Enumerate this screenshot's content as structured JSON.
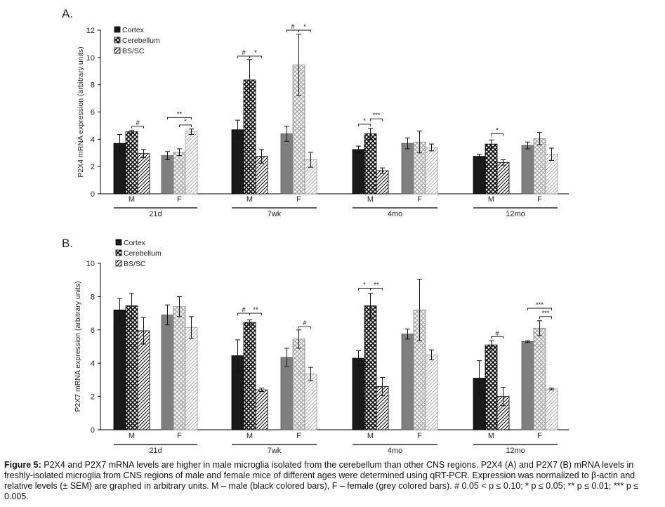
{
  "figure": {
    "caption_label": "Figure 5:",
    "caption_text": " P2X4 and P2X7 mRNA levels are higher in male microglia isolated from the cerebellum than other CNS regions. P2X4 (A) and P2X7 (B) mRNA levels in freshly-isolated microglia from CNS regions of male and female mice of different ages were determined using qRT-PCR. Expression was normalized to β-actin and relative levels (± SEM) are graphed in arbitrary units.  M – male (black colored bars), F – female (grey colored bars).  # 0.05 < p ≤ 0.10; * p ≤ 0.05; ** p ≤ 0.01; *** p ≤ 0.005."
  },
  "colors": {
    "cortex_male": "#1a1a1a",
    "cortex_female": "#7f7f7f",
    "cerebellum_male": "#1a1a1a",
    "cerebellum_female": "#a0a0a0",
    "bssc_male": "#1a1a1a",
    "bssc_female": "#b0b0b0"
  },
  "chart_data": [
    {
      "type": "bar",
      "panel_label": "A.",
      "ylabel": "P2X4 mRNA expression (arbitrary units)",
      "ylim": [
        0,
        12
      ],
      "yticks": [
        "0",
        "2",
        "4",
        "6",
        "8",
        "10",
        "12"
      ],
      "legend": [
        "Cortex",
        "Cerebellum",
        "BS/SC"
      ],
      "legend_placement": "top-left",
      "groups": [
        "21d",
        "7wk",
        "4mo",
        "12mo"
      ],
      "sexes": [
        "M",
        "F"
      ],
      "series": [
        {
          "name": "Cortex",
          "values": [
            [
              3.7,
              2.8
            ],
            [
              4.7,
              4.4
            ],
            [
              3.25,
              3.7
            ],
            [
              2.75,
              3.55
            ]
          ],
          "errors": [
            [
              0.65,
              0.3
            ],
            [
              0.7,
              0.55
            ],
            [
              0.25,
              0.4
            ],
            [
              0.15,
              0.25
            ]
          ]
        },
        {
          "name": "Cerebellum",
          "values": [
            [
              4.55,
              3.05
            ],
            [
              8.35,
              9.45
            ],
            [
              4.4,
              3.8
            ],
            [
              3.65,
              4.05
            ]
          ],
          "errors": [
            [
              0.1,
              0.25
            ],
            [
              1.5,
              2.25
            ],
            [
              0.4,
              0.8
            ],
            [
              0.3,
              0.45
            ]
          ]
        },
        {
          "name": "BS/SC",
          "values": [
            [
              2.95,
              4.55
            ],
            [
              2.75,
              2.5
            ],
            [
              1.7,
              3.4
            ],
            [
              2.3,
              2.9
            ]
          ],
          "errors": [
            [
              0.3,
              0.2
            ],
            [
              0.5,
              0.55
            ],
            [
              0.2,
              0.25
            ],
            [
              0.2,
              0.45
            ]
          ]
        }
      ],
      "annotations": [
        {
          "group": 0,
          "sex": 0,
          "from": 1,
          "to": 2,
          "y": 4.95,
          "label": "#"
        },
        {
          "group": 0,
          "sex": 1,
          "from": 0,
          "to": 2,
          "y": 5.6,
          "label": "**"
        },
        {
          "group": 0,
          "sex": 1,
          "from": 1,
          "to": 2,
          "y": 5.05,
          "label": "*"
        },
        {
          "group": 1,
          "sex": 0,
          "from": 0,
          "to": 1,
          "y": 10.1,
          "label": "#"
        },
        {
          "group": 1,
          "sex": 0,
          "from": 1,
          "to": 2,
          "y": 10.1,
          "label": "*"
        },
        {
          "group": 1,
          "sex": 1,
          "from": 0,
          "to": 1,
          "y": 12.0,
          "label": "#"
        },
        {
          "group": 1,
          "sex": 1,
          "from": 1,
          "to": 2,
          "y": 12.0,
          "label": "*"
        },
        {
          "group": 2,
          "sex": 0,
          "from": 0,
          "to": 1,
          "y": 5.1,
          "label": "*"
        },
        {
          "group": 2,
          "sex": 0,
          "from": 1,
          "to": 2,
          "y": 5.5,
          "label": "***"
        },
        {
          "group": 3,
          "sex": 0,
          "from": 1,
          "to": 2,
          "y": 4.4,
          "label": "*"
        }
      ]
    },
    {
      "type": "bar",
      "panel_label": "B.",
      "ylabel": "P2X7 mRNA expression (arbitrary units)",
      "ylim": [
        0,
        10
      ],
      "yticks": [
        "0",
        "2",
        "4",
        "6",
        "8",
        "10"
      ],
      "legend": [
        "Cortex",
        "Cerebellum",
        "BS/SC"
      ],
      "legend_placement": "top-left",
      "groups": [
        "21d",
        "7wk",
        "4mo",
        "12mo"
      ],
      "sexes": [
        "M",
        "F"
      ],
      "series": [
        {
          "name": "Cortex",
          "values": [
            [
              7.2,
              6.9
            ],
            [
              4.45,
              4.35
            ],
            [
              4.3,
              5.75
            ],
            [
              3.1,
              5.3
            ]
          ],
          "errors": [
            [
              0.7,
              0.6
            ],
            [
              0.95,
              0.55
            ],
            [
              0.45,
              0.3
            ],
            [
              1.05,
              0.05
            ]
          ]
        },
        {
          "name": "Cerebellum",
          "values": [
            [
              7.45,
              7.4
            ],
            [
              6.45,
              5.45
            ],
            [
              7.45,
              7.2
            ],
            [
              5.1,
              6.1
            ]
          ],
          "errors": [
            [
              0.75,
              0.6
            ],
            [
              0.15,
              0.55
            ],
            [
              0.75,
              1.85
            ],
            [
              0.25,
              0.45
            ]
          ]
        },
        {
          "name": "BS/SC",
          "values": [
            [
              5.95,
              6.15
            ],
            [
              2.4,
              3.35
            ],
            [
              2.6,
              4.5
            ],
            [
              2.0,
              2.45
            ]
          ],
          "errors": [
            [
              0.8,
              0.65
            ],
            [
              0.1,
              0.4
            ],
            [
              0.55,
              0.3
            ],
            [
              0.55,
              0.05
            ]
          ]
        }
      ],
      "annotations": [
        {
          "group": 1,
          "sex": 0,
          "from": 0,
          "to": 1,
          "y": 7.0,
          "label": "#"
        },
        {
          "group": 1,
          "sex": 0,
          "from": 1,
          "to": 2,
          "y": 7.0,
          "label": "**"
        },
        {
          "group": 1,
          "sex": 1,
          "from": 1,
          "to": 2,
          "y": 6.2,
          "label": "#"
        },
        {
          "group": 2,
          "sex": 0,
          "from": 0,
          "to": 1,
          "y": 8.5,
          "label": "*"
        },
        {
          "group": 2,
          "sex": 0,
          "from": 1,
          "to": 2,
          "y": 8.5,
          "label": "**"
        },
        {
          "group": 3,
          "sex": 0,
          "from": 1,
          "to": 2,
          "y": 5.6,
          "label": "#"
        },
        {
          "group": 3,
          "sex": 1,
          "from": 0,
          "to": 2,
          "y": 7.3,
          "label": "***"
        },
        {
          "group": 3,
          "sex": 1,
          "from": 1,
          "to": 2,
          "y": 6.8,
          "label": "***"
        }
      ]
    }
  ]
}
